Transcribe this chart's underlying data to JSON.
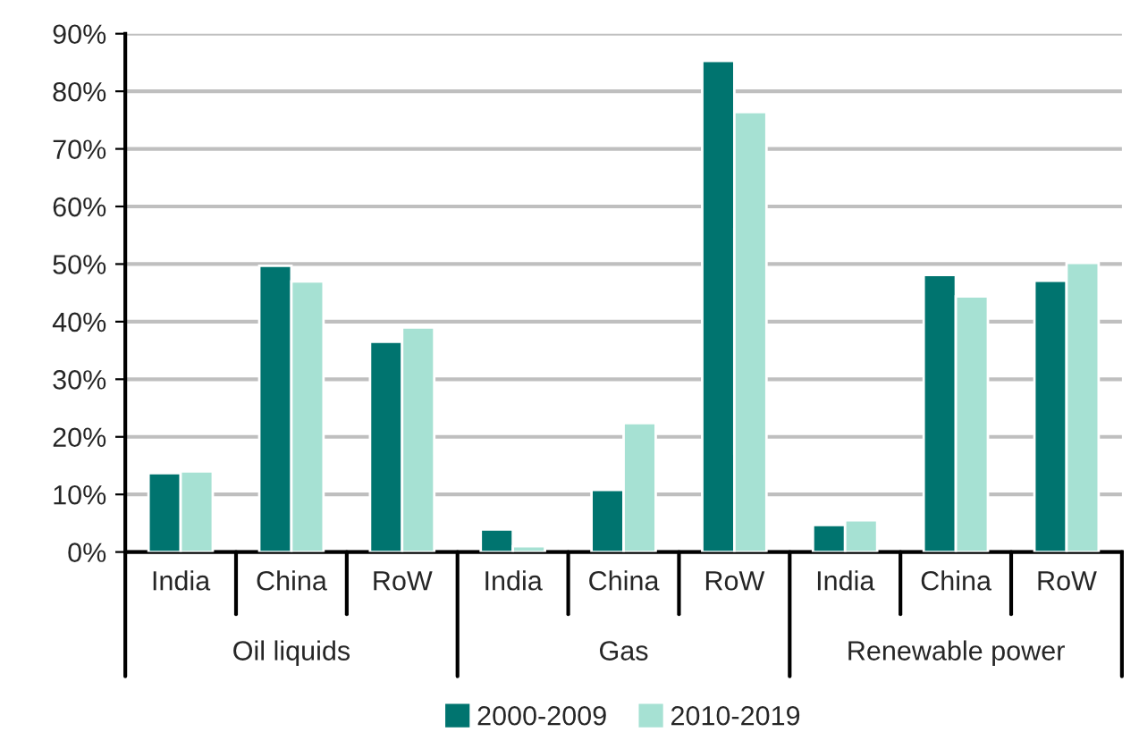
{
  "chart_data": {
    "type": "bar",
    "categories": [
      "India",
      "China",
      "RoW",
      "India",
      "China",
      "RoW",
      "India",
      "China",
      "RoW"
    ],
    "annotations": [
      "Oil liquids",
      "Gas",
      "Renewable power"
    ],
    "series": [
      {
        "name": "2000-2009",
        "color": "#00746f",
        "values": [
          13.7,
          49.7,
          36.5,
          3.9,
          10.8,
          85.3,
          4.7,
          48.1,
          47.1
        ]
      },
      {
        "name": "2010-2019",
        "color": "#a6e1d3",
        "values": [
          14.0,
          47.0,
          39.0,
          1.0,
          22.4,
          76.4,
          5.5,
          44.4,
          50.2
        ]
      }
    ],
    "ylim": [
      0,
      90
    ],
    "yticks": [
      {
        "value": 0,
        "label": "0%"
      },
      {
        "value": 10,
        "label": "10%"
      },
      {
        "value": 20,
        "label": "20%"
      },
      {
        "value": 30,
        "label": "30%"
      },
      {
        "value": 40,
        "label": "40%"
      },
      {
        "value": 50,
        "label": "50%"
      },
      {
        "value": 60,
        "label": "60%"
      },
      {
        "value": 70,
        "label": "70%"
      },
      {
        "value": 80,
        "label": "80%"
      },
      {
        "value": 90,
        "label": "90%"
      }
    ],
    "grid": "y",
    "legend": "bottom"
  }
}
